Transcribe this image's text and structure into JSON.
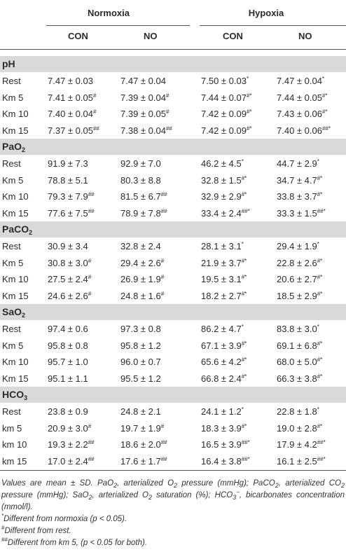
{
  "header": {
    "groups": [
      "Normoxia",
      "Hypoxia"
    ],
    "columns": [
      "CON",
      "NO",
      "CON",
      "NO"
    ]
  },
  "sections": [
    {
      "title": [
        {
          "text": "pH"
        }
      ],
      "rows": [
        {
          "label": "Rest",
          "cells": [
            {
              "value": "7.47 ± 0.03"
            },
            {
              "value": "7.47 ± 0.04"
            },
            {
              "value": "7.50 ± 0.03",
              "sup": "*"
            },
            {
              "value": "7.47 ± 0.04",
              "sup": "*"
            }
          ]
        },
        {
          "label": "Km 5",
          "cells": [
            {
              "value": "7.41 ± 0.05",
              "sup": "#"
            },
            {
              "value": "7.39 ± 0.04",
              "sup": "#"
            },
            {
              "value": "7.44 ± 0.07",
              "sup": "#*"
            },
            {
              "value": "7.44 ± 0.05",
              "sup": "#*"
            }
          ]
        },
        {
          "label": "Km 10",
          "cells": [
            {
              "value": "7.40 ± 0.04",
              "sup": "#"
            },
            {
              "value": "7.39 ± 0.05",
              "sup": "#"
            },
            {
              "value": "7.42 ± 0.09",
              "sup": "#*"
            },
            {
              "value": "7.43 ± 0.06",
              "sup": "#*"
            }
          ]
        },
        {
          "label": "Km 15",
          "cells": [
            {
              "value": "7.37 ± 0.05",
              "sup": "##"
            },
            {
              "value": "7.38 ± 0.04",
              "sup": "##"
            },
            {
              "value": "7.42 ± 0.09",
              "sup": "#*"
            },
            {
              "value": "7.40 ± 0.06",
              "sup": "##*"
            }
          ]
        }
      ]
    },
    {
      "title": [
        {
          "text": "PaO"
        },
        {
          "sub": "2"
        }
      ],
      "rows": [
        {
          "label": "Rest",
          "cells": [
            {
              "value": "91.9 ± 7.3"
            },
            {
              "value": "92.9 ± 7.0"
            },
            {
              "value": "46.2 ± 4.5",
              "sup": "*"
            },
            {
              "value": "44.7 ± 2.9",
              "sup": "*"
            }
          ]
        },
        {
          "label": "Km 5",
          "cells": [
            {
              "value": "78.8 ± 5.1"
            },
            {
              "value": "80.3 ± 8.8"
            },
            {
              "value": "32.8 ± 1.5",
              "sup": "#*"
            },
            {
              "value": "34.7 ± 4.7",
              "sup": "#*"
            }
          ]
        },
        {
          "label": "Km 10",
          "cells": [
            {
              "value": "79.3 ± 7.9",
              "sup": "##"
            },
            {
              "value": "81.5 ± 6.7",
              "sup": "##"
            },
            {
              "value": "32.9 ± 2.9",
              "sup": "#*"
            },
            {
              "value": "33.8 ± 3.7",
              "sup": "#*"
            }
          ]
        },
        {
          "label": "Km 15",
          "cells": [
            {
              "value": "77.6 ± 7.5",
              "sup": "##"
            },
            {
              "value": "78.9 ± 7.8",
              "sup": "##"
            },
            {
              "value": "33.4 ± 2.4",
              "sup": "##*"
            },
            {
              "value": "33.3 ± 1.5",
              "sup": "##*"
            }
          ]
        }
      ]
    },
    {
      "title": [
        {
          "text": "PaCO"
        },
        {
          "sub": "2"
        }
      ],
      "rows": [
        {
          "label": "Rest",
          "cells": [
            {
              "value": "30.9 ± 3.4"
            },
            {
              "value": "32.8 ± 2.4"
            },
            {
              "value": "28.1 ± 3.1",
              "sup": "*"
            },
            {
              "value": "29.4 ± 1.9",
              "sup": "*"
            }
          ]
        },
        {
          "label": "Km 5",
          "cells": [
            {
              "value": "30.8 ± 3.0",
              "sup": "#"
            },
            {
              "value": "29.4 ± 2.6",
              "sup": "#"
            },
            {
              "value": "21.9 ± 3.7",
              "sup": "#*"
            },
            {
              "value": "22.8 ± 2.6",
              "sup": "#*"
            }
          ]
        },
        {
          "label": "Km 10",
          "cells": [
            {
              "value": "27.5 ± 2.4",
              "sup": "#"
            },
            {
              "value": "26.9 ± 1.9",
              "sup": "#"
            },
            {
              "value": "19.5 ± 3.1",
              "sup": "#*"
            },
            {
              "value": "20.6 ± 2.7",
              "sup": "#*"
            }
          ]
        },
        {
          "label": "Km 15",
          "cells": [
            {
              "value": "24.6 ± 2.6",
              "sup": "#"
            },
            {
              "value": "24.8 ± 1.6",
              "sup": "#"
            },
            {
              "value": "18.2 ± 2.7",
              "sup": "#*"
            },
            {
              "value": "18.5 ± 2.9",
              "sup": "#*"
            }
          ]
        }
      ]
    },
    {
      "title": [
        {
          "text": "SaO"
        },
        {
          "sub": "2"
        }
      ],
      "rows": [
        {
          "label": "Rest",
          "cells": [
            {
              "value": "97.4 ± 0.6"
            },
            {
              "value": "97.3 ± 0.8"
            },
            {
              "value": "86.2 ± 4.7",
              "sup": "*"
            },
            {
              "value": "83.8 ± 3.0",
              "sup": "*"
            }
          ]
        },
        {
          "label": "Km 5",
          "cells": [
            {
              "value": "95.8 ± 0.8"
            },
            {
              "value": "95.8 ± 1.2"
            },
            {
              "value": "67.1 ± 3.9",
              "sup": "#*"
            },
            {
              "value": "69.1 ± 6.8",
              "sup": "#*"
            }
          ]
        },
        {
          "label": "Km 10",
          "cells": [
            {
              "value": "95.7 ± 1.0"
            },
            {
              "value": "96.0 ± 0.7"
            },
            {
              "value": "65.6 ± 4.2",
              "sup": "#*"
            },
            {
              "value": "68.0 ± 5.0",
              "sup": "#*"
            }
          ]
        },
        {
          "label": "Km 15",
          "cells": [
            {
              "value": "95.1 ± 1.1"
            },
            {
              "value": "95.5 ± 1.2"
            },
            {
              "value": "66.8 ± 2.4",
              "sup": "#*"
            },
            {
              "value": "66.3 ± 3.8",
              "sup": "#*"
            }
          ]
        }
      ]
    },
    {
      "title": [
        {
          "text": "HCO"
        },
        {
          "sub": "3"
        }
      ],
      "rows": [
        {
          "label": "Rest",
          "cells": [
            {
              "value": "23.8 ± 0.9"
            },
            {
              "value": "24.8 ± 2.1"
            },
            {
              "value": "24.1 ± 1.2",
              "sup": "*"
            },
            {
              "value": "22.8 ± 1.8",
              "sup": "*"
            }
          ]
        },
        {
          "label": "km 5",
          "cells": [
            {
              "value": "20.9 ± 3.0",
              "sup": "#"
            },
            {
              "value": "19.7 ± 1.9",
              "sup": "#"
            },
            {
              "value": "18.3 ± 3.9",
              "sup": "#*"
            },
            {
              "value": "19.0 ± 2.8",
              "sup": "#*"
            }
          ]
        },
        {
          "label": "km 10",
          "cells": [
            {
              "value": "19.3 ± 2.2",
              "sup": "##"
            },
            {
              "value": "18.6 ± 2.0",
              "sup": "##"
            },
            {
              "value": "16.5 ± 3.9",
              "sup": "##*"
            },
            {
              "value": "17.9 ± 4.2",
              "sup": "##*"
            }
          ]
        },
        {
          "label": "km 15",
          "cells": [
            {
              "value": "17.0 ± 2.4",
              "sup": "##"
            },
            {
              "value": "17.6 ± 1.7",
              "sup": "##"
            },
            {
              "value": "16.4 ± 3.8",
              "sup": "##*"
            },
            {
              "value": "16.1 ± 2.5",
              "sup": "##*"
            }
          ]
        }
      ]
    }
  ],
  "footnotes": [
    [
      {
        "text": "Values are mean ± SD. PaO"
      },
      {
        "sub": "2"
      },
      {
        "text": ", arterialized O"
      },
      {
        "sub": "2"
      },
      {
        "text": " pressure (mmHg); PaCO"
      },
      {
        "sub": "2"
      },
      {
        "text": ", arterialized CO"
      },
      {
        "sub": "2"
      },
      {
        "text": " pressure (mmHg); SaO"
      },
      {
        "sub": "2"
      },
      {
        "text": ", arterialized O"
      },
      {
        "sub": "2"
      },
      {
        "text": " saturation (%); HCO"
      },
      {
        "sub": "3"
      },
      {
        "sup": "−"
      },
      {
        "text": ", bicarbonates concentration (mmol/l)."
      }
    ],
    [
      {
        "sup": "*"
      },
      {
        "text": "Different from normoxia (p < 0.05)."
      }
    ],
    [
      {
        "sup": "#"
      },
      {
        "text": "Different from rest."
      }
    ],
    [
      {
        "sup": "##"
      },
      {
        "text": "Different from km 5, (p < 0.05 for both)."
      }
    ]
  ]
}
